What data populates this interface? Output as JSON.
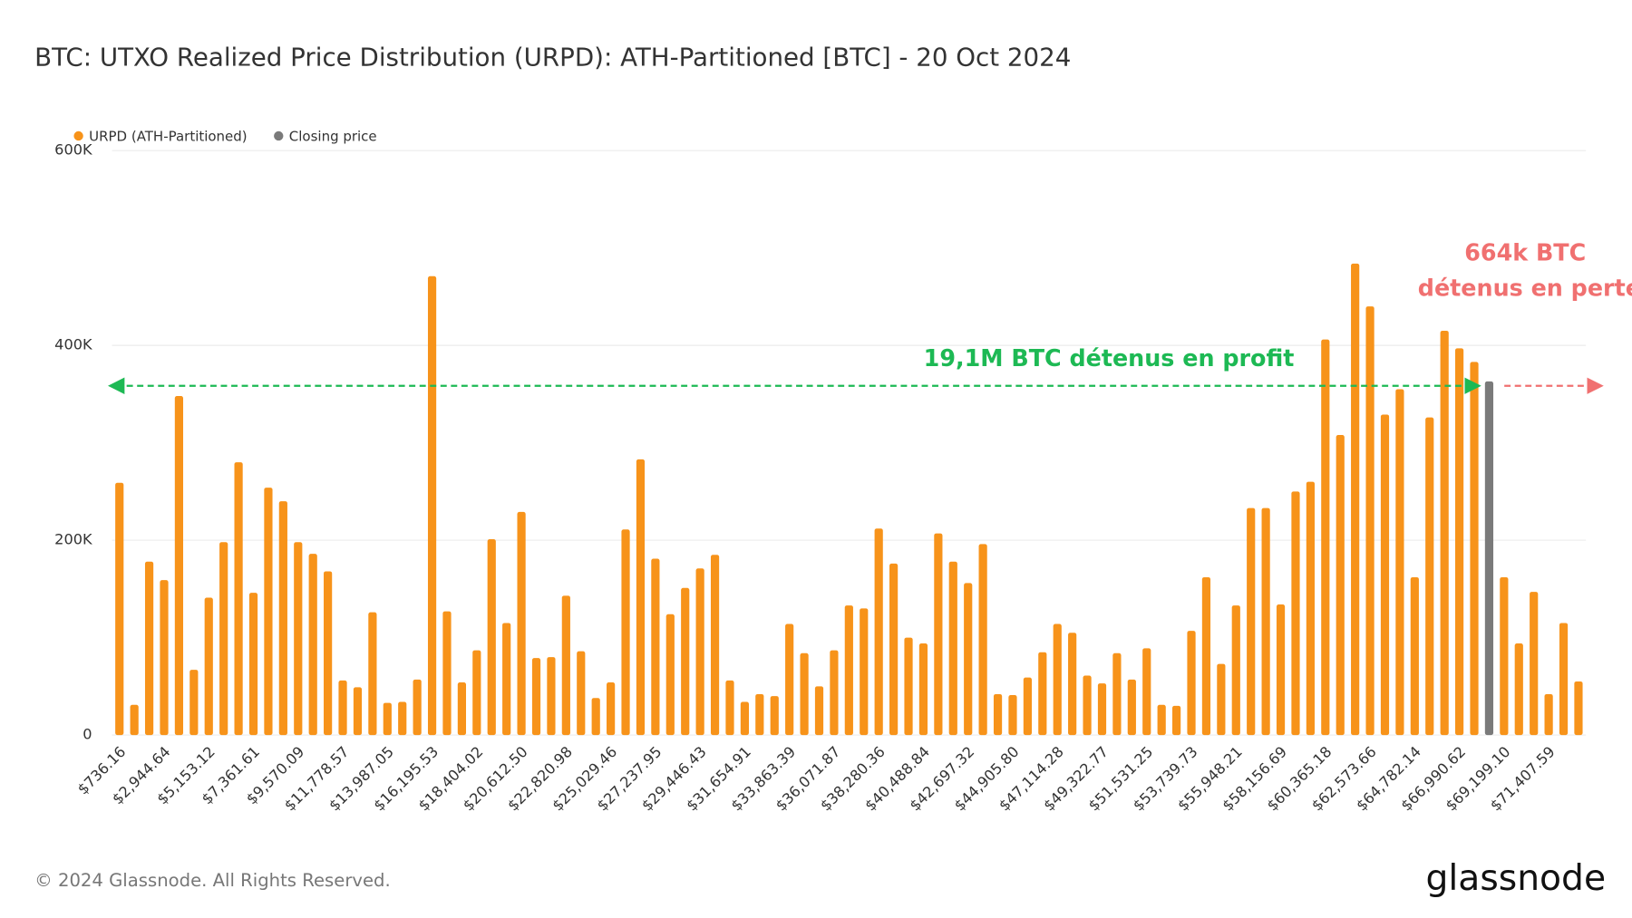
{
  "chart_data": {
    "type": "bar",
    "title": "BTC: UTXO Realized Price Distribution (URPD): ATH-Partitioned [BTC] - 20 Oct 2024",
    "categories": [
      "$736.16",
      null,
      null,
      "$2,944.64",
      null,
      null,
      "$5,153.12",
      null,
      null,
      "$7,361.61",
      null,
      null,
      "$9,570.09",
      null,
      null,
      "$11,778.57",
      null,
      null,
      "$13,987.05",
      null,
      null,
      "$16,195.53",
      null,
      null,
      "$18,404.02",
      null,
      null,
      "$20,612.50",
      null,
      null,
      "$22,820.98",
      null,
      null,
      "$25,029.46",
      null,
      null,
      "$27,237.95",
      null,
      null,
      "$29,446.43",
      null,
      null,
      "$31,654.91",
      null,
      null,
      "$33,863.39",
      null,
      null,
      "$36,071.87",
      null,
      null,
      "$38,280.36",
      null,
      null,
      "$40,488.84",
      null,
      null,
      "$42,697.32",
      null,
      null,
      "$44,905.80",
      null,
      null,
      "$47,114.28",
      null,
      null,
      "$49,322.77",
      null,
      null,
      "$51,531.25",
      null,
      null,
      "$53,739.73",
      null,
      null,
      "$55,948.21",
      null,
      null,
      "$58,156.69",
      null,
      null,
      "$60,365.18",
      null,
      null,
      "$62,573.66",
      null,
      null,
      "$64,782.14",
      null,
      null,
      "$66,990.62",
      null,
      null,
      "$69,199.10",
      null,
      null,
      "$71,407.59",
      null,
      null
    ],
    "series": [
      {
        "name": "URPD (ATH-Partitioned)",
        "color": "#f7931a",
        "values": [
          259000,
          31000,
          178000,
          159000,
          348000,
          67000,
          141000,
          198000,
          280000,
          146000,
          254000,
          240000,
          198000,
          186000,
          168000,
          56000,
          49000,
          126000,
          33000,
          34000,
          57000,
          471000,
          127000,
          54000,
          87000,
          201000,
          115000,
          229000,
          79000,
          80000,
          143000,
          86000,
          38000,
          54000,
          211000,
          283000,
          181000,
          124000,
          151000,
          171000,
          185000,
          56000,
          34000,
          42000,
          40000,
          114000,
          84000,
          50000,
          87000,
          133000,
          130000,
          212000,
          176000,
          100000,
          94000,
          207000,
          178000,
          156000,
          196000,
          42000,
          41000,
          59000,
          85000,
          114000,
          105000,
          61000,
          53000,
          84000,
          57000,
          89000,
          31000,
          30000,
          107000,
          162000,
          73000,
          133000,
          233000,
          233000,
          134000,
          250000,
          260000,
          406000,
          308000,
          484000,
          440000,
          329000,
          355000,
          162000,
          326000,
          415000,
          397000,
          383000,
          null,
          162000,
          94000,
          147000,
          42000,
          115000,
          55000
        ]
      },
      {
        "name": "Closing price",
        "color": "#7a7a7a",
        "values": [
          null,
          null,
          null,
          null,
          null,
          null,
          null,
          null,
          null,
          null,
          null,
          null,
          null,
          null,
          null,
          null,
          null,
          null,
          null,
          null,
          null,
          null,
          null,
          null,
          null,
          null,
          null,
          null,
          null,
          null,
          null,
          null,
          null,
          null,
          null,
          null,
          null,
          null,
          null,
          null,
          null,
          null,
          null,
          null,
          null,
          null,
          null,
          null,
          null,
          null,
          null,
          null,
          null,
          null,
          null,
          null,
          null,
          null,
          null,
          null,
          null,
          null,
          null,
          null,
          null,
          null,
          null,
          null,
          null,
          null,
          null,
          null,
          null,
          null,
          null,
          null,
          null,
          null,
          null,
          null,
          null,
          null,
          null,
          null,
          null,
          null,
          null,
          null,
          null,
          null,
          null,
          null,
          363000,
          null,
          null,
          null,
          null,
          null,
          null
        ]
      }
    ],
    "ylim": [
      0,
      600000
    ],
    "yticks": [
      0,
      {
        "value": 200000,
        "label": "200K"
      },
      {
        "value": 400000,
        "label": "400K"
      },
      {
        "value": 600000,
        "label": "600K"
      }
    ],
    "grid": true,
    "annotations": [
      "19,1M BTC détenus en profit",
      "664k BTC",
      "détenus en perte"
    ],
    "footer": "© 2024 Glassnode. All Rights Reserved.",
    "logo": "glassnode"
  }
}
